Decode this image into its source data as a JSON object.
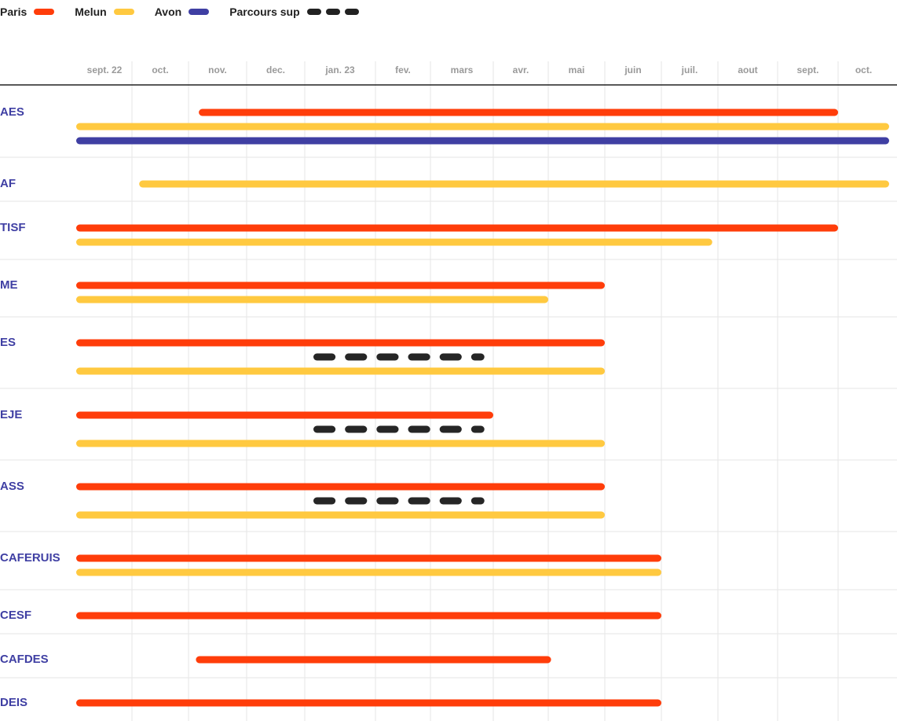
{
  "chart_data": {
    "type": "gantt",
    "months": [
      "sept. 22",
      "oct.",
      "nov.",
      "dec.",
      "jan. 23",
      "fev.",
      "mars",
      "avr.",
      "mai",
      "juin",
      "juil.",
      "aout",
      "sept.",
      "oct."
    ],
    "legend": [
      {
        "key": "paris",
        "label": "Paris",
        "color": "#ff3d0a",
        "style": "solid"
      },
      {
        "key": "melun",
        "label": "Melun",
        "color": "#ffc940",
        "style": "solid"
      },
      {
        "key": "avon",
        "label": "Avon",
        "color": "#3f3fa3",
        "style": "solid"
      },
      {
        "key": "parcours",
        "label": "Parcours sup",
        "color": "#262626",
        "style": "dashed"
      }
    ],
    "rows": [
      {
        "label": "AES",
        "bars": [
          {
            "series": "paris",
            "start": 2.15,
            "end": 13.0
          },
          {
            "series": "melun",
            "start": 0,
            "end": 14.0
          },
          {
            "series": "avon",
            "start": 0,
            "end": 14.0
          }
        ]
      },
      {
        "label": "AF",
        "bars": [
          {
            "series": "melun",
            "start": 1.1,
            "end": 14.0
          }
        ]
      },
      {
        "label": "TISF",
        "bars": [
          {
            "series": "paris",
            "start": 0,
            "end": 13.0
          },
          {
            "series": "melun",
            "start": 0,
            "end": 10.9
          }
        ]
      },
      {
        "label": "ME",
        "bars": [
          {
            "series": "paris",
            "start": 0,
            "end": 9.0
          },
          {
            "series": "melun",
            "start": 0,
            "end": 8.0
          }
        ]
      },
      {
        "label": "ES",
        "bars": [
          {
            "series": "paris",
            "start": 0,
            "end": 9.0
          },
          {
            "series": "parcours",
            "start": 4.1,
            "end": 7.0
          },
          {
            "series": "melun",
            "start": 0,
            "end": 9.0
          }
        ]
      },
      {
        "label": "EJE",
        "bars": [
          {
            "series": "paris",
            "start": 0,
            "end": 7.0
          },
          {
            "series": "parcours",
            "start": 4.1,
            "end": 7.0
          },
          {
            "series": "melun",
            "start": 0,
            "end": 9.0
          }
        ]
      },
      {
        "label": "ASS",
        "bars": [
          {
            "series": "paris",
            "start": 0,
            "end": 9.0
          },
          {
            "series": "parcours",
            "start": 4.1,
            "end": 7.0
          },
          {
            "series": "melun",
            "start": 0,
            "end": 9.0
          }
        ]
      },
      {
        "label": "CAFERUIS",
        "bars": [
          {
            "series": "paris",
            "start": 0,
            "end": 10.0
          },
          {
            "series": "melun",
            "start": 0,
            "end": 10.0
          }
        ]
      },
      {
        "label": "CESF",
        "bars": [
          {
            "series": "paris",
            "start": 0,
            "end": 10.0
          }
        ]
      },
      {
        "label": "CAFDES",
        "bars": [
          {
            "series": "paris",
            "start": 2.1,
            "end": 8.05
          }
        ]
      },
      {
        "label": "DEIS",
        "bars": [
          {
            "series": "paris",
            "start": 0,
            "end": 10.0
          }
        ]
      }
    ]
  }
}
